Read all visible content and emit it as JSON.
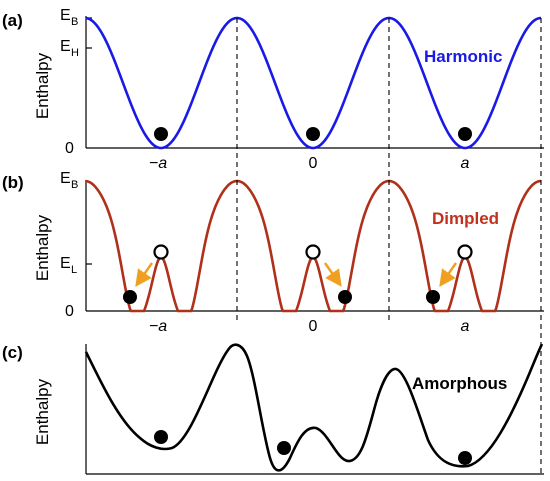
{
  "panels": [
    {
      "id": "a",
      "label": "(a)",
      "ylabel": "Enthalpy",
      "title": "Harmonic",
      "title_color": "#1a1ae6",
      "curve_color": "#1a1ae6",
      "levels": [
        {
          "main": "E",
          "sub": "B"
        },
        {
          "main": "E",
          "sub": "H"
        },
        {
          "main": "0",
          "sub": ""
        }
      ],
      "x_ticks": [
        "−a",
        "0",
        "a"
      ],
      "filled_balls": 3,
      "open_balls": 0
    },
    {
      "id": "b",
      "label": "(b)",
      "ylabel": "Enthalpy",
      "title": "Dimpled",
      "title_color": "#c0321e",
      "curve_color": "#b0301a",
      "levels": [
        {
          "main": "E",
          "sub": "B"
        },
        {
          "main": "E",
          "sub": "L"
        },
        {
          "main": "0",
          "sub": ""
        }
      ],
      "x_ticks": [
        "−a",
        "0",
        "a"
      ],
      "filled_balls": 3,
      "open_balls": 3,
      "arrow_color": "#f0a020"
    },
    {
      "id": "c",
      "label": "(c)",
      "ylabel": "Enthalpy",
      "title": "Amorphous",
      "title_color": "#000000",
      "curve_color": "#000000",
      "filled_balls": 3
    }
  ]
}
